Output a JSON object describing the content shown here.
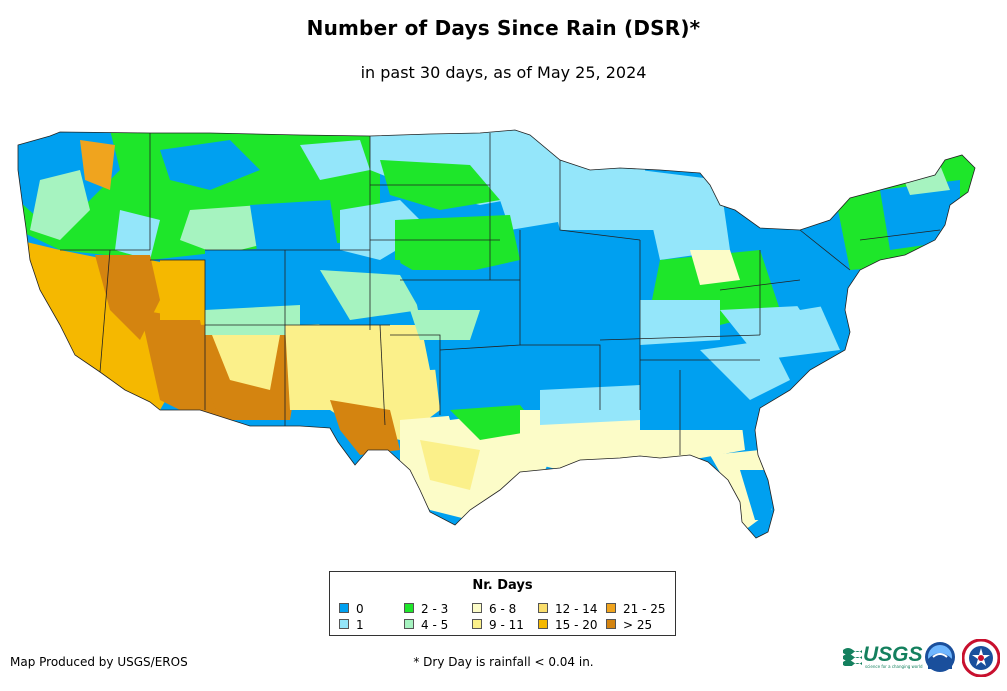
{
  "title": "Number of Days Since Rain (DSR)*",
  "subtitle": "in past 30 days, as of May 25, 2024",
  "legend": {
    "title": "Nr. Days",
    "items": [
      {
        "label": "0",
        "color": "#00a0f0"
      },
      {
        "label": "1",
        "color": "#94e6fa"
      },
      {
        "label": "2 - 3",
        "color": "#1ee62a"
      },
      {
        "label": "4 - 5",
        "color": "#a6f3c0"
      },
      {
        "label": "6 - 8",
        "color": "#fcfcc8"
      },
      {
        "label": "9 - 11",
        "color": "#fbf08a"
      },
      {
        "label": "12 - 14",
        "color": "#fade6c"
      },
      {
        "label": "15 - 20",
        "color": "#f5b800"
      },
      {
        "label": "21 - 25",
        "color": "#f0a41e"
      },
      {
        "label": "> 25",
        "color": "#d48410"
      }
    ]
  },
  "footer": {
    "credit": "Map Produced by USGS/EROS",
    "footnote": "* Dry Day is rainfall < 0.04 in."
  },
  "logos": {
    "usgs": {
      "name": "usgs-logo",
      "text": "USGS",
      "tagline": "science for a changing world"
    },
    "noaa": {
      "name": "noaa-logo"
    },
    "nws": {
      "name": "nws-logo"
    }
  }
}
